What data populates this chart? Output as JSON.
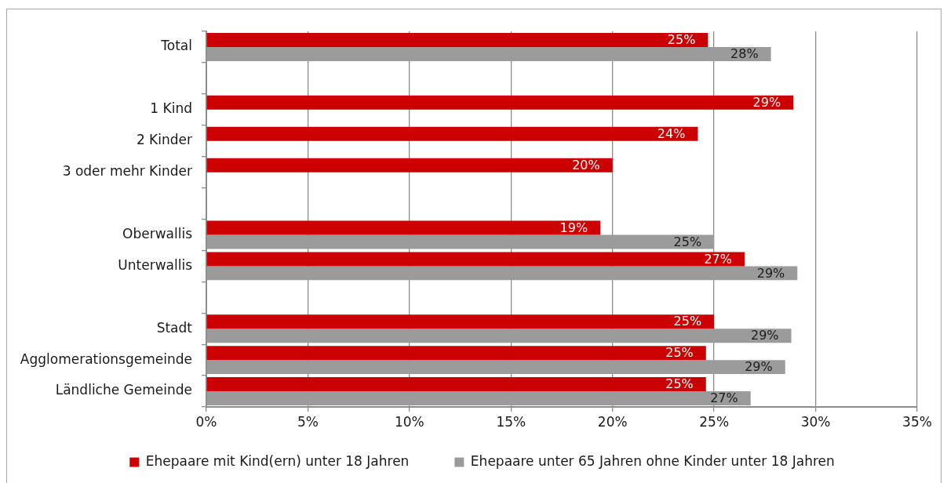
{
  "chart_data": {
    "type": "bar",
    "orientation": "horizontal",
    "categories": [
      "Total",
      null,
      "1 Kind",
      "2 Kinder",
      "3 oder mehr Kinder",
      null,
      "Oberwallis",
      "Unterwallis",
      null,
      "Stadt",
      "Agglomerationsgemeinde",
      "Ländliche Gemeinde"
    ],
    "series": [
      {
        "name": "Ehepaare mit Kind(ern) unter 18 Jahren",
        "color": "#cc0000",
        "values": [
          24.7,
          null,
          28.9,
          24.2,
          20.0,
          null,
          19.4,
          26.5,
          null,
          25.0,
          24.6,
          24.6
        ],
        "value_labels": [
          "25%",
          null,
          "29%",
          "24%",
          "20%",
          null,
          "19%",
          "27%",
          null,
          "25%",
          "25%",
          "25%"
        ]
      },
      {
        "name": "Ehepaare unter 65 Jahren ohne Kinder unter 18 Jahren",
        "color": "#9b9b9b",
        "values": [
          27.8,
          null,
          null,
          null,
          null,
          null,
          25.0,
          29.1,
          null,
          28.8,
          28.5,
          26.8
        ],
        "value_labels": [
          "28%",
          null,
          null,
          null,
          null,
          null,
          "25%",
          "29%",
          null,
          "29%",
          "29%",
          "27%"
        ]
      }
    ],
    "xlim": [
      0,
      35
    ],
    "xticks": [
      {
        "value": 0,
        "label": "0%"
      },
      {
        "value": 5,
        "label": "5%"
      },
      {
        "value": 10,
        "label": "10%"
      },
      {
        "value": 15,
        "label": "15%"
      },
      {
        "value": 20,
        "label": "20%"
      },
      {
        "value": 25,
        "label": "25%"
      },
      {
        "value": 30,
        "label": "30%"
      },
      {
        "value": 35,
        "label": "35%"
      }
    ],
    "grid": "x",
    "legend": "bottom"
  }
}
